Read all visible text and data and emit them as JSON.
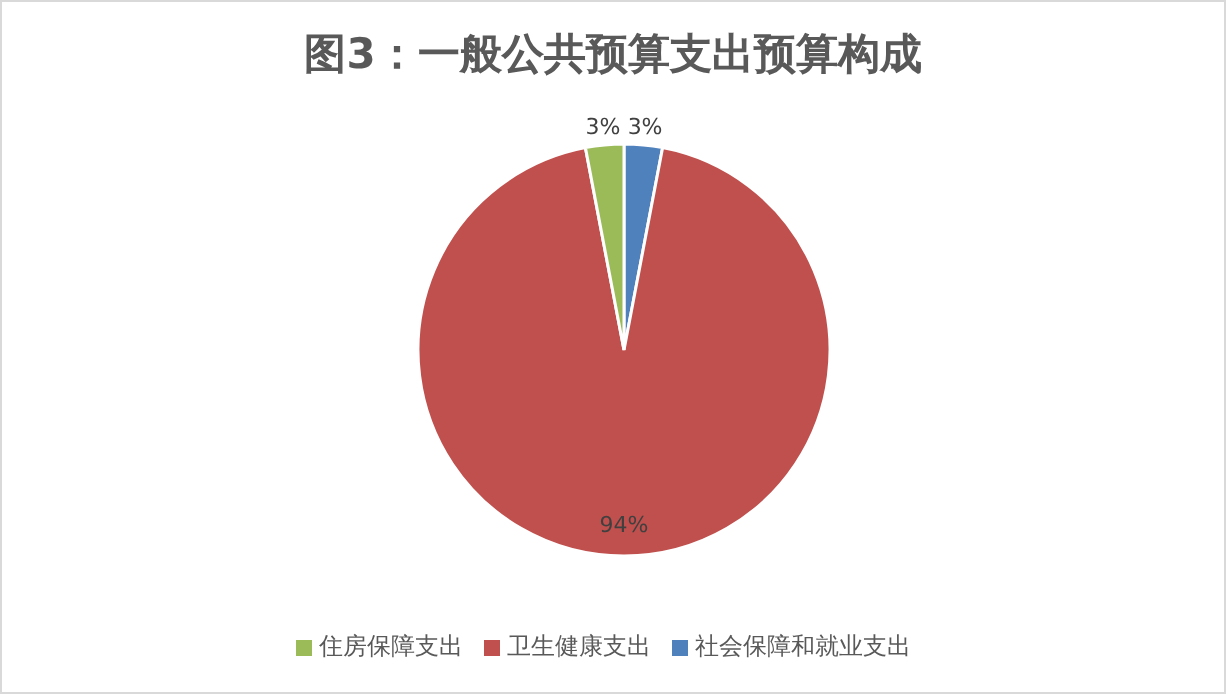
{
  "chart_data": {
    "type": "pie",
    "title": "图3：一般公共预算支出预算构成",
    "categories": [
      "社会保障和就业支出",
      "卫生健康支出",
      "住房保障支出"
    ],
    "values": [
      3,
      94,
      3
    ],
    "colors": [
      "#4f81bd",
      "#c0504d",
      "#9bbb59"
    ],
    "value_labels": [
      "3%",
      "94%",
      "3%"
    ],
    "legend": "bottom"
  }
}
